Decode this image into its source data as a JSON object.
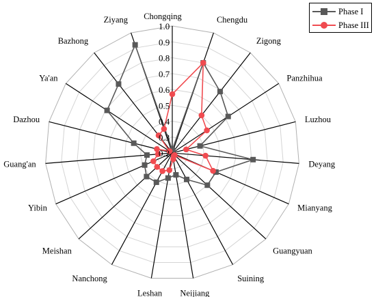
{
  "chart_data": {
    "type": "radar",
    "categories": [
      "Chongqing",
      "Chengdu",
      "Zigong",
      "Panzhihua",
      "Luzhou",
      "Deyang",
      "Mianyang",
      "Guangyuan",
      "Suining",
      "Neijiang",
      "Leshan",
      "Nanchong",
      "Meishan",
      "Yibin",
      "Guang'an",
      "Dazhou",
      "Ya'an",
      "Bazhong",
      "Ziyang"
    ],
    "series": [
      {
        "name": "Phase I",
        "color": "#595959",
        "marker": "square",
        "values": [
          0.22,
          0.8,
          0.69,
          0.62,
          0.38,
          0.71,
          0.5,
          0.5,
          0.39,
          0.34,
          0.36,
          0.41,
          0.42,
          0.39,
          0.36,
          0.45,
          0.69,
          0.75,
          0.92
        ]
      },
      {
        "name": "Phase III",
        "color": "#f04b50",
        "marker": "circle",
        "values": [
          0.57,
          0.8,
          0.5,
          0.46,
          0.29,
          0.41,
          0.48,
          0.22,
          0.22,
          0.24,
          0.31,
          0.33,
          0.33,
          0.33,
          0.29,
          0.3,
          0.22,
          0.34,
          0.36
        ]
      }
    ],
    "rlim": [
      0.2,
      1.0
    ],
    "ticks": [
      "0.2",
      "0.3",
      "0.4",
      "0.5",
      "0.6",
      "0.7",
      "0.8",
      "0.9",
      "1.0"
    ],
    "grid": true,
    "legend": "top-right"
  }
}
